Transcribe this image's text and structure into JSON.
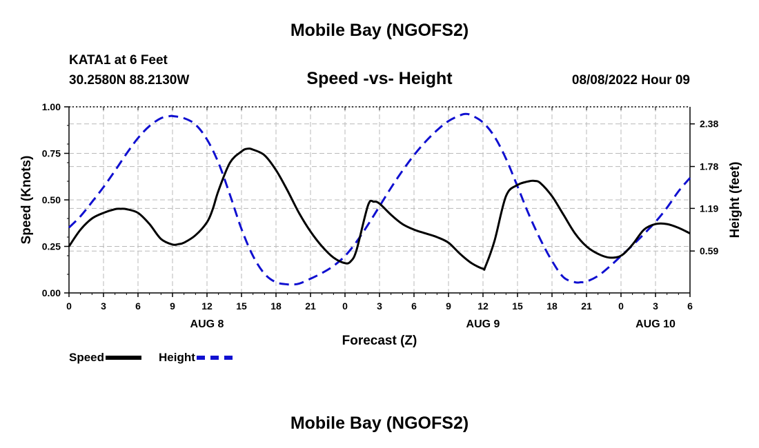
{
  "header": {
    "title": "Mobile Bay (NGOFS2)",
    "station": "KATA1 at 6 Feet",
    "coordinates": "30.2580N  88.2130W",
    "subtitle": "Speed -vs- Height",
    "timestamp": "08/08/2022 Hour 09"
  },
  "footer": {
    "title": "Mobile Bay (NGOFS2)"
  },
  "legend": {
    "items": [
      {
        "label": "Speed",
        "color": "#000000",
        "style": "solid"
      },
      {
        "label": "Height",
        "color": "#1010d0",
        "style": "dashed"
      }
    ]
  },
  "chart_data": {
    "type": "line",
    "title": "Speed -vs- Height",
    "xlabel": "Forecast (Z)",
    "ylabel": "Speed (Knots)",
    "y2label": "Height (feet)",
    "xlim": [
      0,
      54
    ],
    "ylim": [
      0,
      1.0
    ],
    "y2lim": [
      0.0,
      2.62
    ],
    "x_ticks": [
      0,
      3,
      6,
      9,
      12,
      15,
      18,
      21,
      24,
      27,
      30,
      33,
      36,
      39,
      42,
      45,
      48,
      51,
      54
    ],
    "x_tick_labels": [
      "0",
      "3",
      "6",
      "9",
      "12",
      "15",
      "18",
      "21",
      "0",
      "3",
      "6",
      "9",
      "12",
      "15",
      "18",
      "21",
      "0",
      "3",
      "6"
    ],
    "date_labels": [
      {
        "x": 12,
        "label": "AUG 8"
      },
      {
        "x": 36,
        "label": "AUG 9"
      },
      {
        "x": 51,
        "label": "AUG 10"
      }
    ],
    "y_ticks": [
      0.0,
      0.25,
      0.5,
      0.75,
      1.0
    ],
    "y_tick_labels": [
      "0.00",
      "0.25",
      "0.50",
      "0.75",
      "1.00"
    ],
    "y2_ticks": [
      0.59,
      1.19,
      1.78,
      2.38
    ],
    "y2_tick_labels": [
      "0.59",
      "1.19",
      "1.78",
      "2.38"
    ],
    "grid": true,
    "series": [
      {
        "name": "Speed",
        "axis": "left",
        "color": "#000000",
        "dash": "solid",
        "x": [
          0,
          1,
          2,
          3,
          4,
          4.5,
          5,
          6,
          7,
          8,
          9,
          9.5,
          10,
          11,
          12,
          12.5,
          13,
          14,
          15,
          15.5,
          16,
          17,
          18,
          19,
          20,
          21,
          22,
          23,
          24,
          24.5,
          25,
          26,
          26.5,
          27,
          28,
          29,
          30,
          31,
          32,
          33,
          34,
          35,
          36,
          36.2,
          37,
          38,
          39,
          40,
          40.5,
          41,
          42,
          43,
          44,
          45,
          46,
          47,
          48,
          49,
          50,
          51,
          52,
          53,
          54
        ],
        "values": [
          0.25,
          0.34,
          0.4,
          0.43,
          0.45,
          0.452,
          0.45,
          0.43,
          0.37,
          0.29,
          0.26,
          0.262,
          0.27,
          0.31,
          0.38,
          0.45,
          0.55,
          0.7,
          0.76,
          0.775,
          0.77,
          0.74,
          0.66,
          0.55,
          0.43,
          0.33,
          0.25,
          0.19,
          0.16,
          0.17,
          0.23,
          0.47,
          0.49,
          0.48,
          0.42,
          0.37,
          0.34,
          0.32,
          0.3,
          0.27,
          0.21,
          0.16,
          0.13,
          0.14,
          0.28,
          0.52,
          0.58,
          0.6,
          0.602,
          0.59,
          0.52,
          0.42,
          0.32,
          0.25,
          0.21,
          0.19,
          0.2,
          0.26,
          0.34,
          0.37,
          0.37,
          0.35,
          0.32
        ]
      },
      {
        "name": "Height",
        "axis": "right",
        "color": "#1010d0",
        "dash": "dashed",
        "x": [
          0,
          1,
          2,
          3,
          4,
          5,
          6,
          7,
          8,
          8.8,
          9,
          10,
          11,
          12,
          13,
          14,
          15,
          16,
          17,
          18,
          19,
          19.4,
          20,
          21,
          22,
          23,
          24,
          25,
          26,
          27,
          28,
          29,
          30,
          31,
          32,
          33,
          34,
          34.5,
          35,
          36,
          37,
          38,
          39,
          40,
          41,
          42,
          43,
          44,
          44.5,
          45,
          46,
          47,
          48,
          49,
          50,
          51,
          52,
          53,
          54
        ],
        "values": [
          0.92,
          1.08,
          1.28,
          1.49,
          1.72,
          1.96,
          2.18,
          2.35,
          2.46,
          2.49,
          2.49,
          2.46,
          2.37,
          2.16,
          1.83,
          1.38,
          0.9,
          0.52,
          0.27,
          0.15,
          0.12,
          0.12,
          0.13,
          0.2,
          0.28,
          0.38,
          0.52,
          0.72,
          0.96,
          1.22,
          1.48,
          1.72,
          1.94,
          2.13,
          2.29,
          2.42,
          2.5,
          2.52,
          2.5,
          2.4,
          2.2,
          1.89,
          1.5,
          1.1,
          0.75,
          0.45,
          0.22,
          0.15,
          0.15,
          0.16,
          0.24,
          0.37,
          0.52,
          0.67,
          0.83,
          1.0,
          1.2,
          1.43,
          1.62
        ]
      }
    ]
  }
}
